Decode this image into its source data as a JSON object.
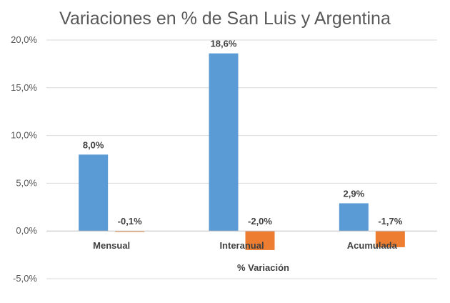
{
  "chart_data": {
    "type": "bar",
    "title": "Variaciones en % de San Luis y Argentina",
    "xlabel": "% Variación",
    "ylabel": "",
    "categories": [
      "Mensual",
      "Interanual",
      "Acumulada"
    ],
    "series": [
      {
        "values": [
          8.0,
          18.6,
          2.9
        ],
        "labels": [
          "8,0%",
          "18,6%",
          "2,9%"
        ],
        "color": "#5B9BD5"
      },
      {
        "values": [
          -0.1,
          -2.0,
          -1.7
        ],
        "labels": [
          "-0,1%",
          "-2,0%",
          "-1,7%"
        ],
        "color": "#ED7D31"
      }
    ],
    "ylim": [
      -5,
      20
    ],
    "yticks": [
      20,
      15,
      10,
      5,
      0,
      -5
    ],
    "ytick_labels": [
      "20,0%",
      "15,0%",
      "10,0%",
      "5,0%",
      "0,0%",
      "-5,0%"
    ],
    "grid": true,
    "legend": "none"
  }
}
